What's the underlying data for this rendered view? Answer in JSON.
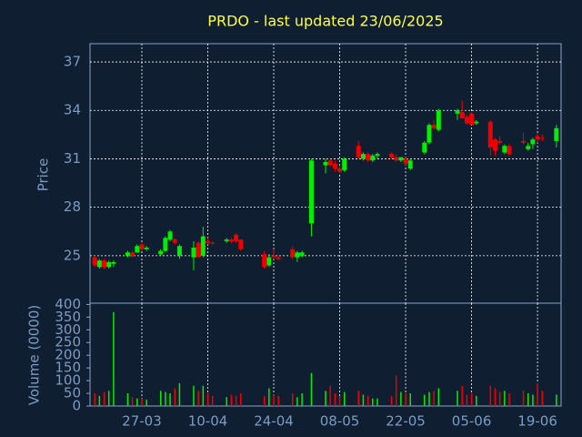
{
  "chart_data": {
    "type": "candlestick",
    "title": "PRDO - last updated 23/06/2025",
    "ylabel": "Price",
    "up_color": "#00ee00",
    "down_color": "#ee0000",
    "grid": true,
    "x": [
      "17-03",
      "18-03",
      "19-03",
      "20-03",
      "21-03",
      "24-03",
      "25-03",
      "26-03",
      "27-03",
      "28-03",
      "31-03",
      "01-04",
      "02-04",
      "03-04",
      "04-04",
      "07-04",
      "08-04",
      "09-04",
      "10-04",
      "11-04",
      "14-04",
      "15-04",
      "16-04",
      "17-04",
      "22-04",
      "23-04",
      "24-04",
      "25-04",
      "28-04",
      "29-04",
      "30-04",
      "02-05",
      "05-05",
      "06-05",
      "07-05",
      "08-05",
      "09-05",
      "12-05",
      "13-05",
      "14-05",
      "15-05",
      "16-05",
      "19-05",
      "20-05",
      "21-05",
      "22-05",
      "23-05",
      "26-05",
      "27-05",
      "28-05",
      "29-05",
      "02-06",
      "03-06",
      "04-06",
      "05-06",
      "06-06",
      "09-06",
      "10-06",
      "11-06",
      "12-06",
      "13-06",
      "16-06",
      "17-06",
      "18-06",
      "19-06",
      "20-06",
      "23-06"
    ],
    "open": [
      24.9,
      24.3,
      24.7,
      24.3,
      24.5,
      25.0,
      25.2,
      25.2,
      25.7,
      25.4,
      25.1,
      25.3,
      26.0,
      26.0,
      25.0,
      24.9,
      25.8,
      25.0,
      25.9,
      25.8,
      25.9,
      26.0,
      26.3,
      26.0,
      25.1,
      24.4,
      25.0,
      24.9,
      25.4,
      24.9,
      25.0,
      27.0,
      30.6,
      30.9,
      30.7,
      30.4,
      30.3,
      31.8,
      31.0,
      31.3,
      30.9,
      31.2,
      31.3,
      31.1,
      30.9,
      31.0,
      30.4,
      31.4,
      32.0,
      33.1,
      32.8,
      33.8,
      33.9,
      33.6,
      33.8,
      33.2,
      33.3,
      32.2,
      32.1,
      31.4,
      31.8,
      32.1,
      31.6,
      31.9,
      32.4,
      32.3,
      32.1
    ],
    "high": [
      25.0,
      24.8,
      24.8,
      24.7,
      24.7,
      25.3,
      25.3,
      25.7,
      25.8,
      25.6,
      25.4,
      26.2,
      26.6,
      26.1,
      25.7,
      25.9,
      25.9,
      26.8,
      26.1,
      25.9,
      26.1,
      26.1,
      26.4,
      26.0,
      25.3,
      25.1,
      25.4,
      25.0,
      25.6,
      25.3,
      25.3,
      31.0,
      31.0,
      31.0,
      30.9,
      30.6,
      31.1,
      32.1,
      31.4,
      31.4,
      31.3,
      31.4,
      31.4,
      31.3,
      31.1,
      31.1,
      31.0,
      32.1,
      33.2,
      33.4,
      34.1,
      34.1,
      34.6,
      33.7,
      33.9,
      33.4,
      33.4,
      32.3,
      32.4,
      31.9,
      31.9,
      32.6,
      32.0,
      32.3,
      32.6,
      32.5,
      33.1
    ],
    "low": [
      24.3,
      24.2,
      24.2,
      24.2,
      24.3,
      24.9,
      24.9,
      25.2,
      25.3,
      25.3,
      25.0,
      25.2,
      25.9,
      25.7,
      24.8,
      24.1,
      24.9,
      24.9,
      25.7,
      25.7,
      25.8,
      25.8,
      25.8,
      25.3,
      24.2,
      24.3,
      24.8,
      24.7,
      24.8,
      24.6,
      24.9,
      26.2,
      30.1,
      30.5,
      30.2,
      30.1,
      30.2,
      31.0,
      30.9,
      30.8,
      30.8,
      31.0,
      31.0,
      30.8,
      30.8,
      30.6,
      30.3,
      31.3,
      31.9,
      32.8,
      32.7,
      33.4,
      33.5,
      33.1,
      33.1,
      33.1,
      31.2,
      31.2,
      31.9,
      31.3,
      31.2,
      31.9,
      31.5,
      31.6,
      32.0,
      32.1,
      31.7
    ],
    "close": [
      24.4,
      24.7,
      24.3,
      24.6,
      24.6,
      25.2,
      25.0,
      25.6,
      25.4,
      25.5,
      25.3,
      26.1,
      26.5,
      25.8,
      25.6,
      25.5,
      24.9,
      26.2,
      25.8,
      25.8,
      26.0,
      25.9,
      25.9,
      25.4,
      24.3,
      24.9,
      24.9,
      24.8,
      24.9,
      25.2,
      25.2,
      30.9,
      30.8,
      30.6,
      30.4,
      30.2,
      31.0,
      31.1,
      31.3,
      30.9,
      31.2,
      31.3,
      31.1,
      30.9,
      31.1,
      30.7,
      30.9,
      32.0,
      33.1,
      32.9,
      34.0,
      34.0,
      33.5,
      33.2,
      33.1,
      33.3,
      31.7,
      31.5,
      32.0,
      31.8,
      31.3,
      32.0,
      31.8,
      32.2,
      32.2,
      32.3,
      32.9
    ],
    "xlim": [
      "16-03",
      "24-06"
    ],
    "xticks": [
      "27-03",
      "10-04",
      "24-04",
      "08-05",
      "22-05",
      "05-06",
      "19-06"
    ],
    "ylim": [
      22.06,
      38.13
    ],
    "yticks": [
      25,
      28,
      31,
      34,
      37
    ],
    "volume": {
      "ylabel": "Volume (0000)",
      "values": [
        50,
        40,
        55,
        60,
        370,
        50,
        35,
        30,
        30,
        25,
        60,
        55,
        50,
        70,
        90,
        80,
        60,
        80,
        50,
        40,
        35,
        45,
        40,
        50,
        40,
        70,
        45,
        40,
        50,
        35,
        50,
        130,
        60,
        80,
        50,
        40,
        55,
        60,
        45,
        40,
        30,
        30,
        40,
        120,
        55,
        50,
        50,
        45,
        55,
        60,
        70,
        60,
        80,
        45,
        50,
        40,
        80,
        70,
        55,
        60,
        50,
        60,
        50,
        45,
        90,
        60,
        45
      ],
      "ylim": [
        0,
        405
      ],
      "yticks": [
        0,
        50,
        100,
        150,
        200,
        250,
        300,
        350,
        400
      ]
    }
  }
}
